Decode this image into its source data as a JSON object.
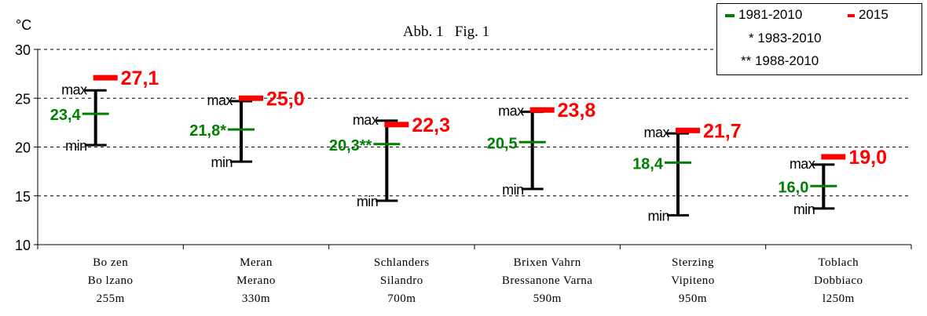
{
  "chart_data": {
    "type": "range-bar",
    "title": "Abb. 1   Fig. 1",
    "ylabel": "°C",
    "ylim": [
      10,
      30
    ],
    "yticks": [
      10,
      15,
      20,
      25,
      30
    ],
    "grid": "dashed horizontal",
    "legend_position": "top-right",
    "legend": {
      "series_1981": "1981-2010",
      "series_2015": "2015",
      "note_1": "* 1983-2010",
      "note_2": "** 1988-2010"
    },
    "colors": {
      "mean": "#008000",
      "y2015": "#ff0000",
      "range": "#000000"
    },
    "labels": {
      "max": "max",
      "min": "min"
    },
    "stations": [
      {
        "line1": "Bo zen",
        "line2": "Bo lzano",
        "line3": "255m",
        "max": 25.8,
        "min": 20.2,
        "mean": 23.4,
        "mean_label": "23,4",
        "y2015": 27.1,
        "y2015_label": "27,1"
      },
      {
        "line1": "Meran",
        "line2": "Merano",
        "line3": "330m",
        "max": 24.7,
        "min": 18.5,
        "mean": 21.8,
        "mean_label": "21,8*",
        "y2015": 25.0,
        "y2015_label": "25,0"
      },
      {
        "line1": "Schlanders",
        "line2": "Silandro",
        "line3": "700m",
        "max": 22.7,
        "min": 14.5,
        "mean": 20.3,
        "mean_label": "20,3**",
        "y2015": 22.3,
        "y2015_label": "22,3"
      },
      {
        "line1": "Brixen Vahrn",
        "line2": "Bressanone Varna",
        "line3": "590m",
        "max": 23.6,
        "min": 15.7,
        "mean": 20.5,
        "mean_label": "20,5",
        "y2015": 23.8,
        "y2015_label": "23,8"
      },
      {
        "line1": "Sterzing",
        "line2": "Vipiteno",
        "line3": "950m",
        "max": 21.4,
        "min": 13.0,
        "mean": 18.4,
        "mean_label": "18,4",
        "y2015": 21.7,
        "y2015_label": "21,7"
      },
      {
        "line1": "Toblach",
        "line2": "Dobbiaco",
        "line3": "l250m",
        "max": 18.2,
        "min": 13.7,
        "mean": 16.0,
        "mean_label": "16,0",
        "y2015": 19.0,
        "y2015_label": "19,0"
      }
    ]
  }
}
